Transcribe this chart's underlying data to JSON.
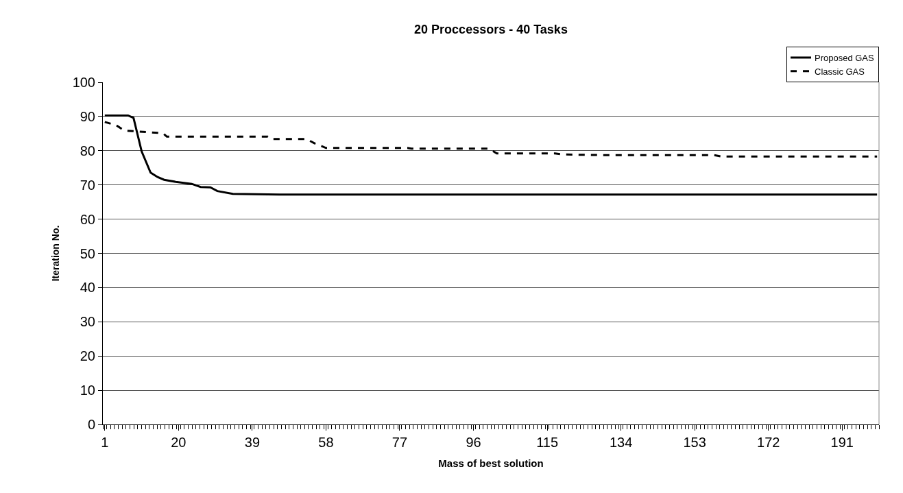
{
  "chart_data": {
    "type": "line",
    "title": "20 Proccessors - 40 Tasks",
    "xlabel": "Mass of best solution",
    "ylabel": "Iteration No.",
    "xlim": [
      0.5,
      200.5
    ],
    "xticks": [
      1,
      20,
      39,
      58,
      77,
      96,
      115,
      134,
      153,
      172,
      191
    ],
    "ylim": [
      0,
      100
    ],
    "yticks": [
      0,
      10,
      20,
      30,
      40,
      50,
      60,
      70,
      80,
      90,
      100
    ],
    "grid": "y",
    "legend": "top right",
    "marker": "none",
    "series": [
      {
        "name": "Proposed GAS",
        "color": "#000000",
        "line_style": "solid",
        "x": [
          1,
          7,
          8.4,
          10.5,
          12.8,
          14.6,
          16.3,
          19.3,
          23.4,
          25.7,
          28.2,
          30,
          34,
          46,
          200
        ],
        "values": [
          90.3,
          90.3,
          89.6,
          79.8,
          73.6,
          72.3,
          71.5,
          70.9,
          70.3,
          69.4,
          69.3,
          68.2,
          67.4,
          67.2,
          67.2
        ]
      },
      {
        "name": "Classic GAS",
        "color": "#000000",
        "line_style": "dashed",
        "x": [
          1,
          4,
          6,
          16,
          17,
          43,
          44,
          53,
          55,
          58,
          79,
          80,
          100,
          102,
          117,
          119,
          130,
          158,
          160,
          200
        ],
        "values": [
          88.4,
          87.4,
          85.9,
          85.1,
          84.1,
          84.1,
          83.4,
          83.4,
          82.2,
          80.8,
          80.8,
          80.6,
          80.6,
          79.2,
          79.2,
          78.9,
          78.7,
          78.7,
          78.3,
          78.3
        ]
      }
    ]
  }
}
